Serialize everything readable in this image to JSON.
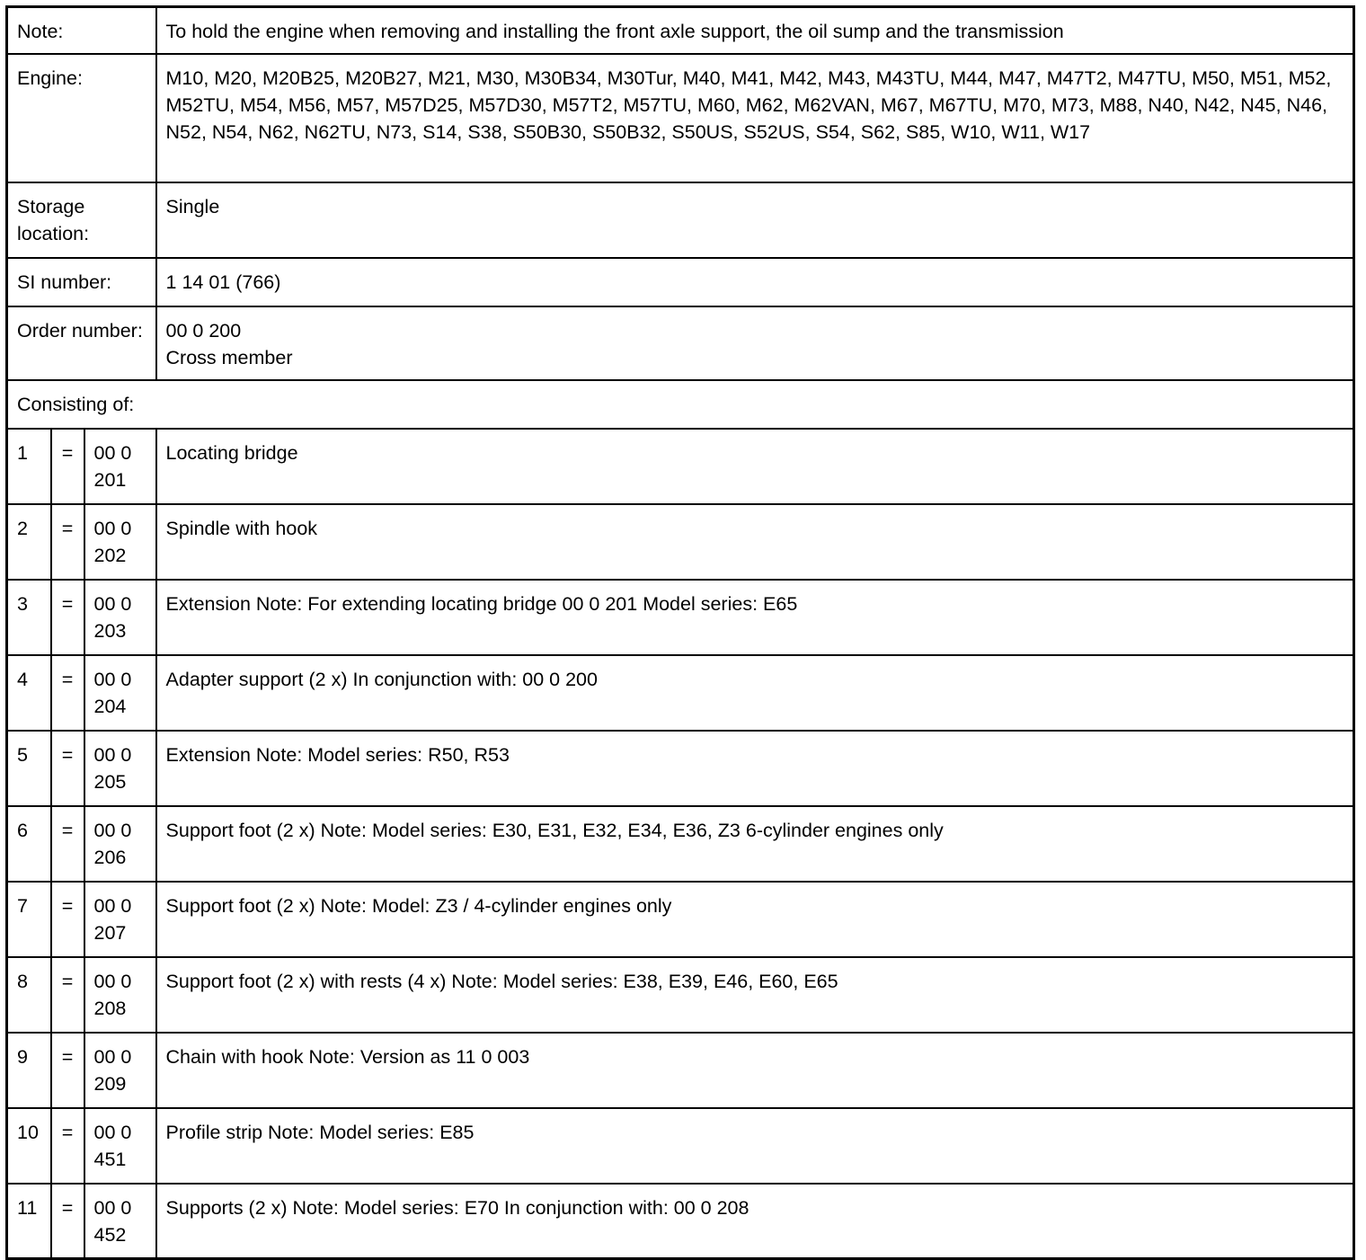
{
  "note": {
    "label": "Note:",
    "value": "To hold the engine when removing and installing the front axle support, the oil sump and the transmission"
  },
  "engine": {
    "label": "Engine:",
    "value": "M10, M20, M20B25, M20B27, M21, M30, M30B34, M30Tur, M40, M41, M42, M43, M43TU, M44, M47, M47T2, M47TU, M50, M51, M52, M52TU, M54, M56, M57, M57D25, M57D30, M57T2, M57TU, M60, M62, M62VAN, M67, M67TU, M70, M73, M88, N40, N42, N45, N46, N52, N54, N62, N62TU, N73, S14, S38, S50B30, S50B32, S50US, S52US, S54, S62, S85, W10, W11, W17"
  },
  "storage": {
    "label": "Storage location:",
    "value": "Single"
  },
  "si": {
    "label": "SI number:",
    "value": "1 14 01 (766)"
  },
  "order": {
    "label": "Order number:",
    "value": "00 0 200\nCross member"
  },
  "consisting": {
    "label": "Consisting of:"
  },
  "items": [
    {
      "n": "1",
      "eq": "=",
      "num": "00 0 201",
      "desc": "Locating bridge"
    },
    {
      "n": "2",
      "eq": "=",
      "num": "00 0 202",
      "desc": "Spindle with hook"
    },
    {
      "n": "3",
      "eq": "=",
      "num": "00 0 203",
      "desc": "Extension Note: For extending locating bridge 00 0 201 Model series: E65"
    },
    {
      "n": "4",
      "eq": "=",
      "num": "00 0 204",
      "desc": "Adapter support (2 x) In conjunction with: 00 0 200"
    },
    {
      "n": "5",
      "eq": "=",
      "num": "00 0 205",
      "desc": "Extension Note: Model series: R50, R53"
    },
    {
      "n": "6",
      "eq": "=",
      "num": "00 0 206",
      "desc": "Support foot (2 x) Note: Model series: E30, E31, E32, E34, E36, Z3 6-cylinder engines only"
    },
    {
      "n": "7",
      "eq": "=",
      "num": "00 0 207",
      "desc": "Support foot (2 x) Note: Model: Z3 / 4-cylinder engines only"
    },
    {
      "n": "8",
      "eq": "=",
      "num": "00 0 208",
      "desc": "Support foot (2 x) with rests (4 x) Note: Model series: E38, E39, E46, E60, E65"
    },
    {
      "n": "9",
      "eq": "=",
      "num": "00 0 209",
      "desc": "Chain with hook Note: Version as 11 0 003"
    },
    {
      "n": "10",
      "eq": "=",
      "num": "00 0 451",
      "desc": "Profile strip Note: Model series: E85"
    },
    {
      "n": "11",
      "eq": "=",
      "num": "00 0 452",
      "desc": "Supports (2 x) Note: Model series: E70 In conjunction with: 00 0 208"
    }
  ]
}
